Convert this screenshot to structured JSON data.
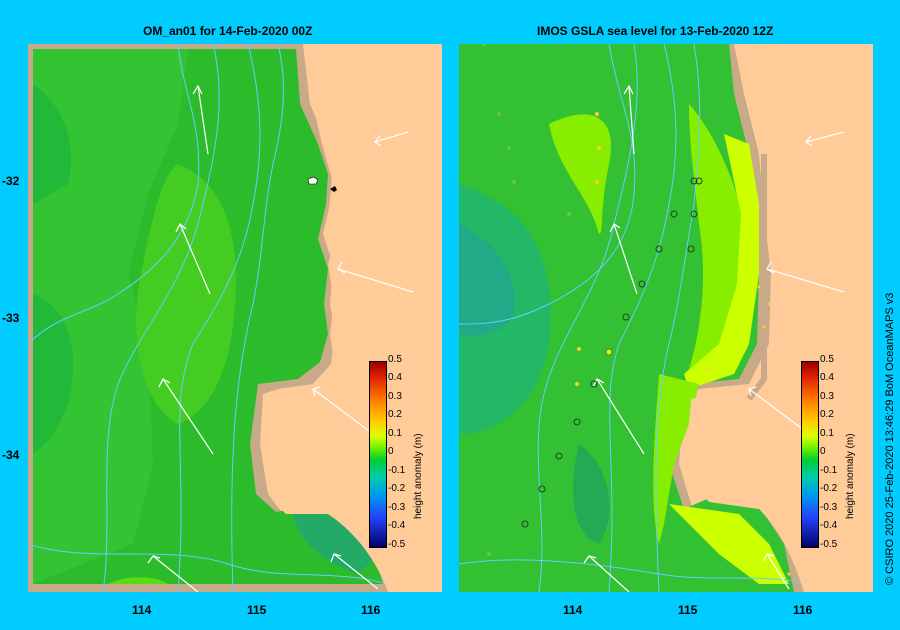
{
  "left_panel": {
    "title": "OM_an01  for 14-Feb-2020 00Z"
  },
  "right_panel": {
    "title": "IMOS GSLA sea level  for 13-Feb-2020 12Z"
  },
  "y_ticks": [
    "-32",
    "-33",
    "-34"
  ],
  "x_ticks": [
    "114",
    "115",
    "116"
  ],
  "colorbar": {
    "label": "height anomaly (m)",
    "ticks": [
      "0.5",
      "0.4",
      "0.3",
      "0.2",
      "0.1",
      "0",
      "-0.1",
      "-0.2",
      "-0.3",
      "-0.4",
      "-0.5"
    ]
  },
  "credit": "© CSIRO 2020   25-Feb-2020 13:46:29 BoM OceanMAPS v3",
  "colors": {
    "frame": "#00ccff",
    "land": "#ffcc99",
    "shelf": "#c8aa88",
    "sea": "#33bb33",
    "contour": "#66ccff"
  }
}
